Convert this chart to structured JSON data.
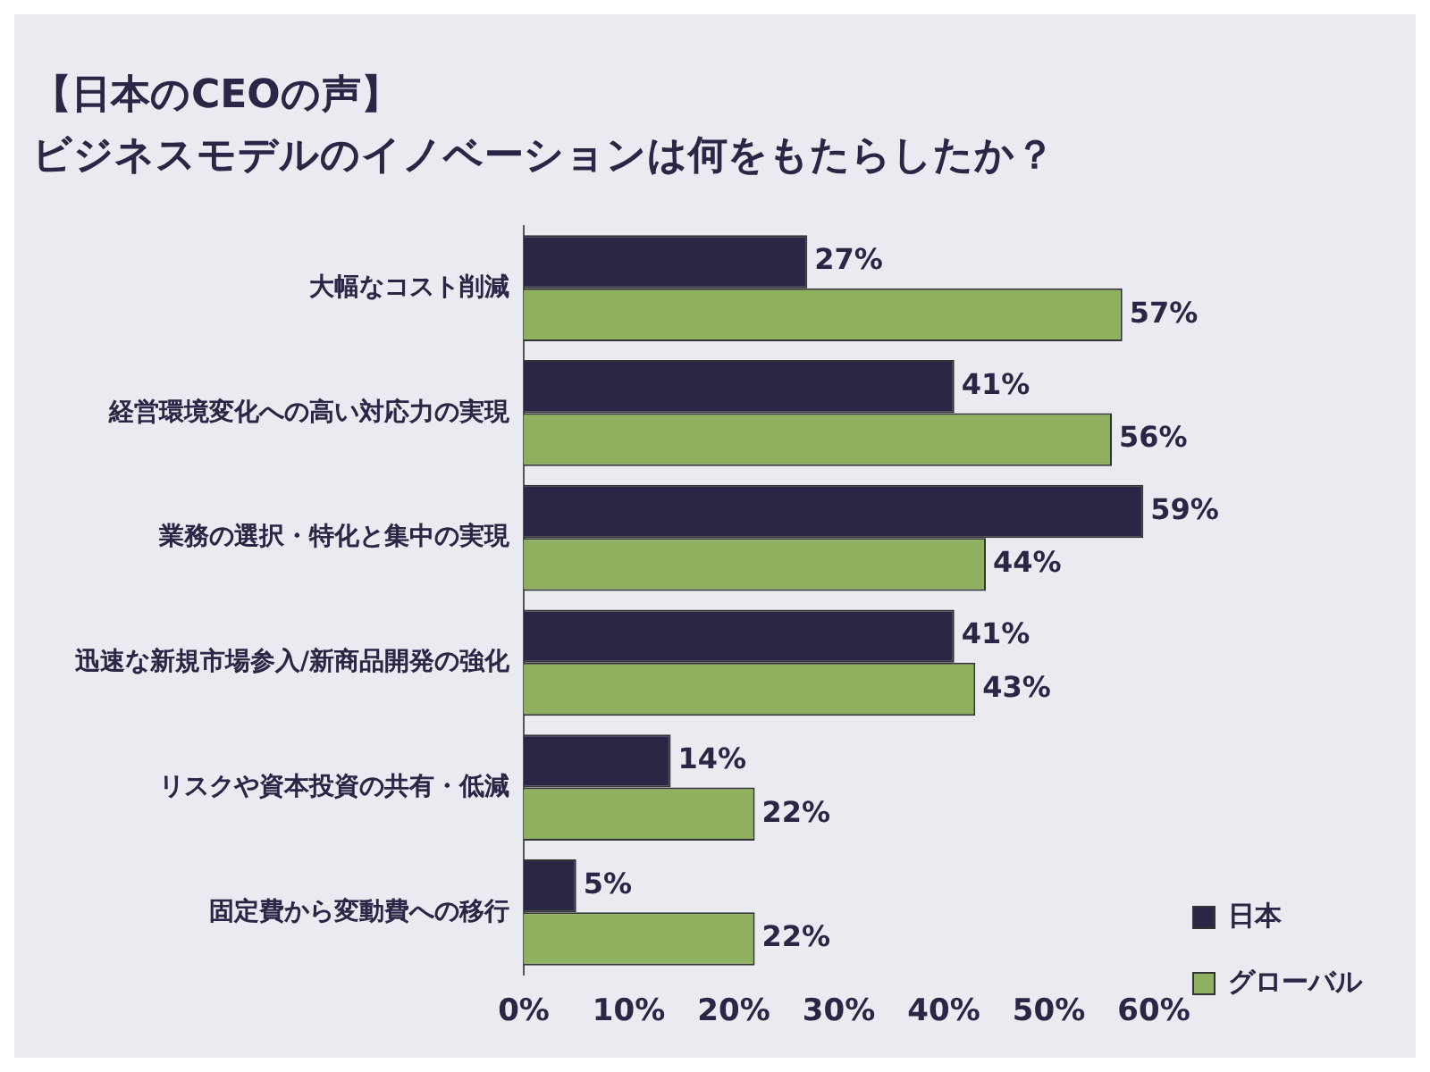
{
  "chart_data": {
    "type": "bar",
    "orientation": "horizontal",
    "title": "【日本のCEOの声】",
    "subtitle": "ビジネスモデルのイノベーションは何をもたらしたか？",
    "categories": [
      "大幅なコスト削減",
      "経営環境変化への高い対応力の実現",
      "業務の選択・特化と集中の実現",
      "迅速な新規市場参入/新商品開発の強化",
      "リスクや資本投資の共有・低減",
      "固定費から変動費への移行"
    ],
    "series": [
      {
        "name": "日本",
        "color": "#2a2646",
        "values": [
          27,
          41,
          59,
          41,
          14,
          5
        ],
        "value_labels": [
          "27%",
          "41%",
          "59%",
          "41%",
          "14%",
          "5%"
        ]
      },
      {
        "name": "グローバル",
        "color": "#8fb05e",
        "values": [
          57,
          56,
          44,
          43,
          22,
          22
        ],
        "value_labels": [
          "57%",
          "56%",
          "44%",
          "43%",
          "22%",
          "22%"
        ]
      }
    ],
    "xlim": [
      0,
      60
    ],
    "xticks": [
      {
        "value": 0,
        "label": "0%"
      },
      {
        "value": 10,
        "label": "10%"
      },
      {
        "value": 20,
        "label": "20%"
      },
      {
        "value": 30,
        "label": "30%"
      },
      {
        "value": 40,
        "label": "40%"
      },
      {
        "value": 50,
        "label": "50%"
      },
      {
        "value": 60,
        "label": "60%"
      }
    ],
    "grid": false,
    "legend": "bottom right"
  }
}
